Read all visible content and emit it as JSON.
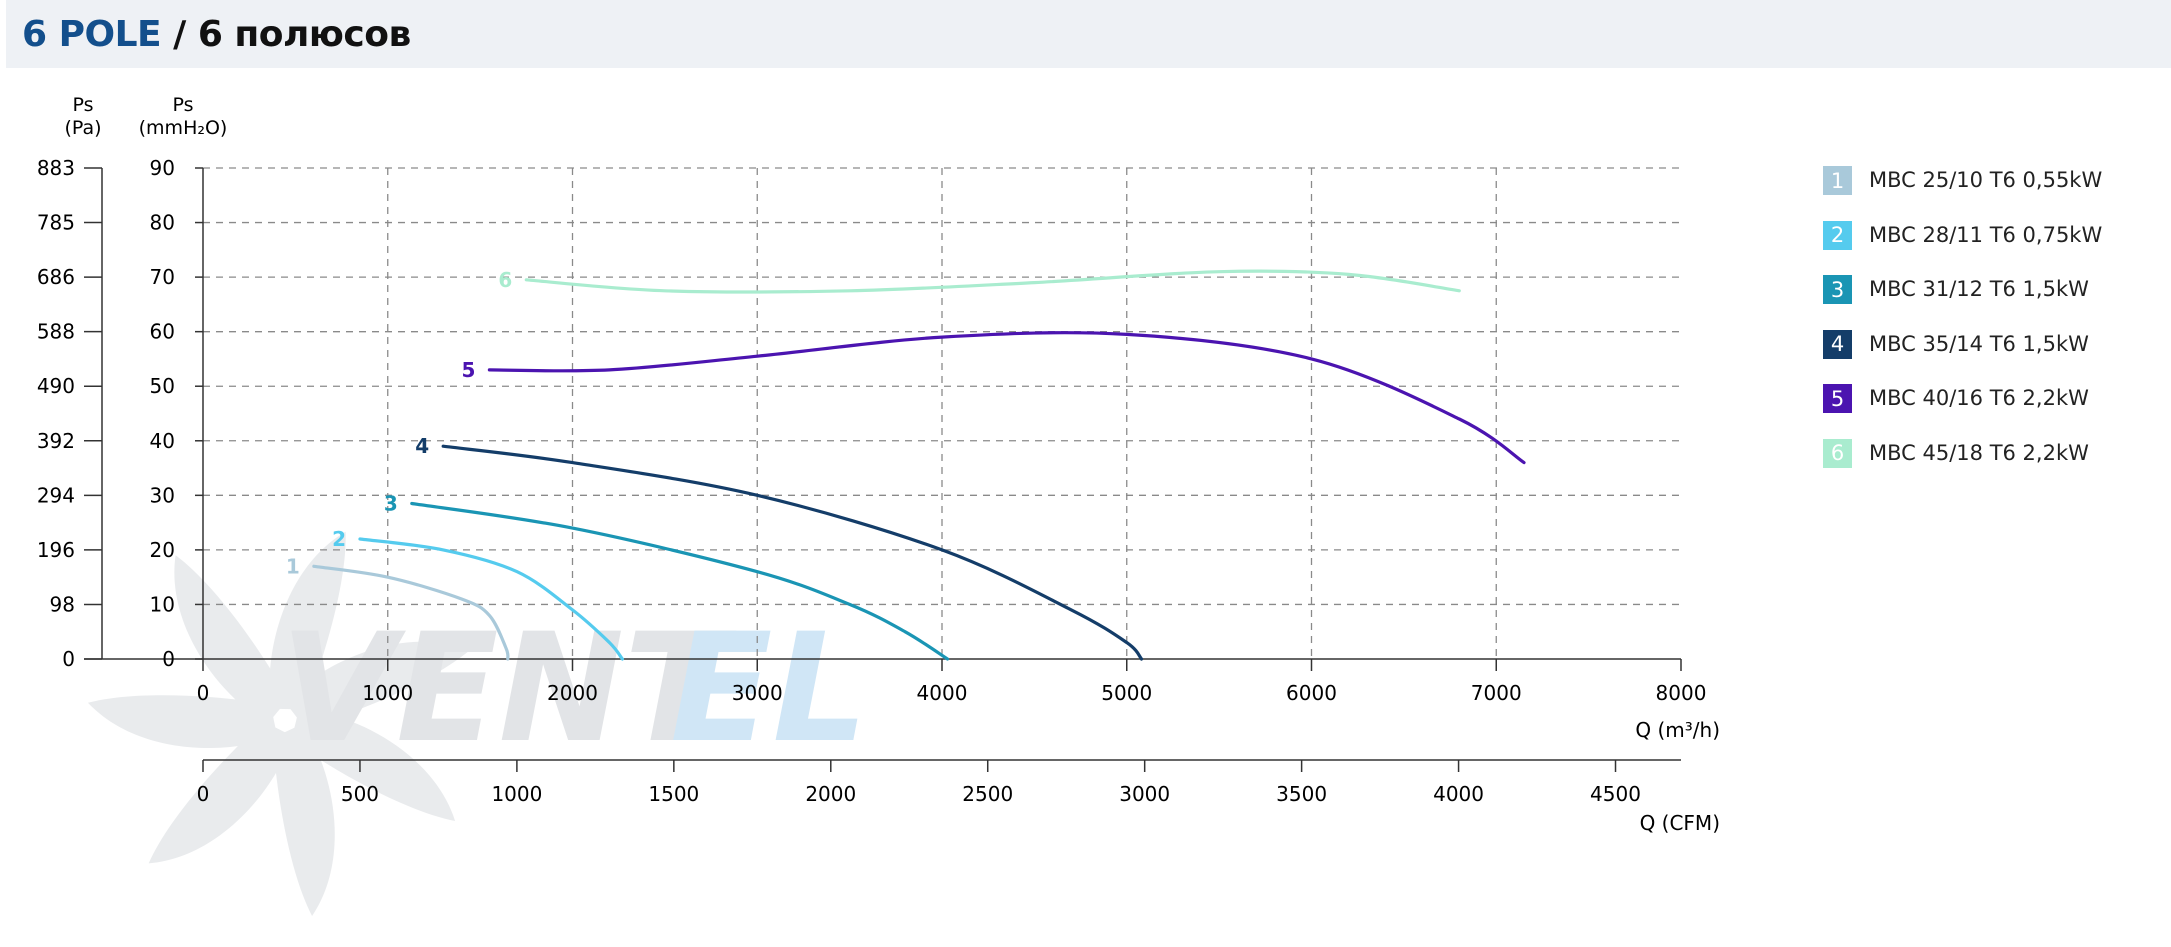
{
  "header": {
    "title_main": "6 POLE",
    "title_sep": " / ",
    "title_ru": "6 полюсов"
  },
  "watermark": {
    "text_a": "VENT",
    "text_b": "EL"
  },
  "chart_data": {
    "type": "line",
    "y_left_label_top": "Ps",
    "y_left_label_bottom": "(Pa)",
    "y_right_label_top": "Ps",
    "y_right_label_bottom": "(mmH₂O)",
    "x_label": "Q (m³/h)",
    "x2_label": "Q (CFM)",
    "xlim": [
      0,
      8000
    ],
    "ylim": [
      0,
      90
    ],
    "x_ticks": [
      "0",
      "1000",
      "2000",
      "3000",
      "4000",
      "5000",
      "6000",
      "7000",
      "8000"
    ],
    "x2_ticks": [
      "0",
      "500",
      "1000",
      "1500",
      "2000",
      "2500",
      "3000",
      "3500",
      "4000",
      "4500"
    ],
    "y_ticks": [
      "0",
      "10",
      "20",
      "30",
      "40",
      "50",
      "60",
      "70",
      "80",
      "90"
    ],
    "y_pa_ticks": [
      "0",
      "98",
      "196",
      "294",
      "392",
      "490",
      "588",
      "686",
      "785",
      "883"
    ],
    "grid": true,
    "legend_position": "right",
    "series": [
      {
        "num": "1",
        "name": "MBC 25/10 T6 0,55kW",
        "color": "#a9c9da",
        "points": [
          [
            600,
            17
          ],
          [
            1000,
            15
          ],
          [
            1400,
            11
          ],
          [
            1550,
            8
          ],
          [
            1640,
            2
          ],
          [
            1650,
            0
          ]
        ]
      },
      {
        "num": "2",
        "name": "MBC 28/11 T6 0,75kW",
        "color": "#55cbee",
        "points": [
          [
            850,
            22
          ],
          [
            1300,
            20
          ],
          [
            1700,
            16
          ],
          [
            2000,
            9
          ],
          [
            2200,
            3
          ],
          [
            2270,
            0
          ]
        ]
      },
      {
        "num": "3",
        "name": "MBC 31/12 T6 1,5kW",
        "color": "#1a95b4",
        "points": [
          [
            1130,
            28.5
          ],
          [
            2000,
            24
          ],
          [
            3000,
            16
          ],
          [
            3500,
            10
          ],
          [
            3800,
            5
          ],
          [
            4030,
            0
          ]
        ]
      },
      {
        "num": "4",
        "name": "MBC 35/14 T6 1,5kW",
        "color": "#143d69",
        "points": [
          [
            1300,
            39
          ],
          [
            2000,
            36
          ],
          [
            3000,
            30
          ],
          [
            4000,
            20
          ],
          [
            4700,
            9
          ],
          [
            5000,
            3
          ],
          [
            5080,
            0
          ]
        ]
      },
      {
        "num": "5",
        "name": "MBC 40/16 T6 2,2kW",
        "color": "#4b14b0",
        "points": [
          [
            1550,
            53
          ],
          [
            2200,
            53
          ],
          [
            3000,
            55.5
          ],
          [
            4000,
            59
          ],
          [
            5000,
            59.5
          ],
          [
            6000,
            55
          ],
          [
            6800,
            44
          ],
          [
            7150,
            36
          ]
        ]
      },
      {
        "num": "6",
        "name": "MBC 45/18 T6 2,2kW",
        "color": "#a9eccf",
        "points": [
          [
            1750,
            69.5
          ],
          [
            2500,
            67.5
          ],
          [
            3500,
            67.5
          ],
          [
            4500,
            69
          ],
          [
            5500,
            71
          ],
          [
            6200,
            70.5
          ],
          [
            6800,
            67.5
          ]
        ]
      }
    ]
  }
}
